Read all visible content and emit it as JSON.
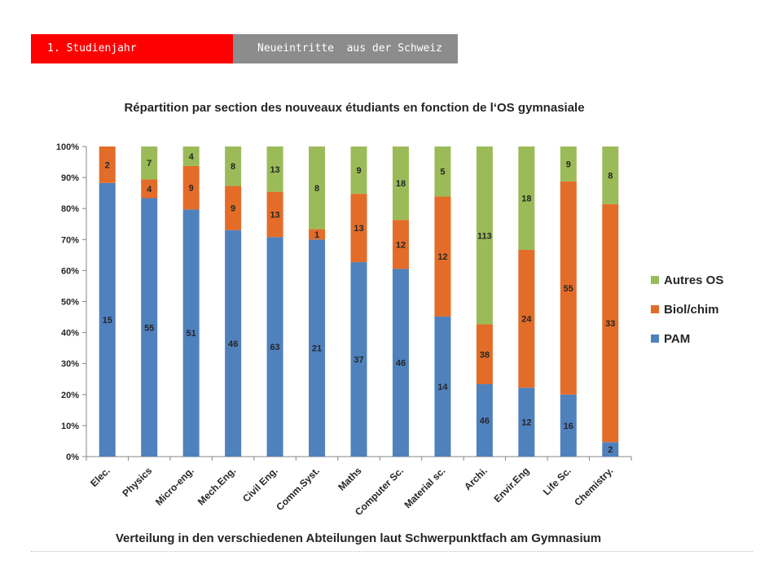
{
  "header": {
    "tab_active": "1. Studienjahr",
    "tab_inactive": "Neueintritte  aus der Schweiz"
  },
  "footer": {
    "caption": "Verteilung in den verschiedenen Abteilungen laut Schwerpunktfach am Gymnasium"
  },
  "chart_data": {
    "type": "bar",
    "stacked": "percent",
    "title": "Répartition par section des nouveaux étudiants en fonction de l‘OS gymnasiale",
    "categories": [
      "Elec.",
      "Physics",
      "Micro-eng.",
      "Mech.Eng.",
      "Civil Eng.",
      "Comm.Syst.",
      "Maths",
      "Computer Sc.",
      "Material sc.",
      "Archi.",
      "Envir.Eng",
      "Life Sc.",
      "Chemistry."
    ],
    "series": [
      {
        "name": "PAM",
        "color": "#4f81bd",
        "values": [
          15,
          55,
          51,
          46,
          63,
          21,
          37,
          46,
          14,
          46,
          12,
          16,
          2
        ]
      },
      {
        "name": "Biol/chim",
        "color": "#e46c29",
        "values": [
          2,
          4,
          9,
          9,
          13,
          1,
          13,
          12,
          12,
          38,
          24,
          55,
          33
        ]
      },
      {
        "name": "Autres OS",
        "color": "#9bbb59",
        "values": [
          0,
          7,
          4,
          8,
          13,
          8,
          9,
          18,
          5,
          113,
          18,
          9,
          8
        ]
      }
    ],
    "yticks": [
      "0%",
      "10%",
      "20%",
      "30%",
      "40%",
      "50%",
      "60%",
      "70%",
      "80%",
      "90%",
      "100%"
    ],
    "ylim": [
      0,
      100
    ],
    "legend": "right",
    "grid": false
  }
}
